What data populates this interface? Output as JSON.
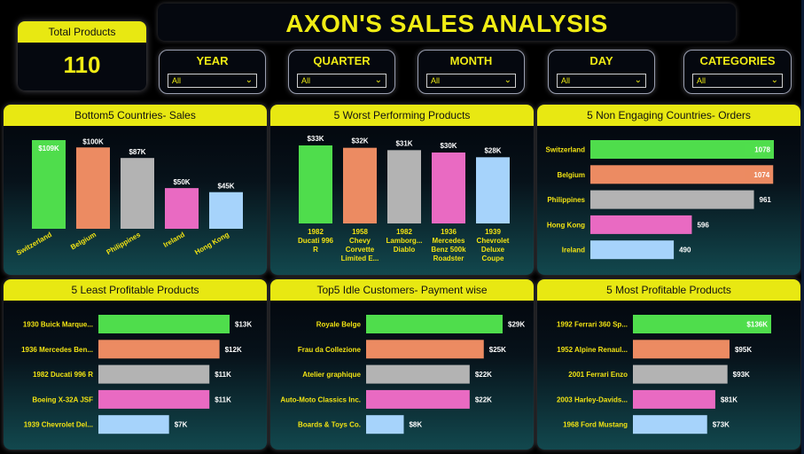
{
  "kpi": {
    "label": "Total Products",
    "value": "110"
  },
  "title": "AXON'S SALES ANALYSIS",
  "filters": [
    {
      "label": "YEAR",
      "value": "All"
    },
    {
      "label": "QUARTER",
      "value": "All"
    },
    {
      "label": "MONTH",
      "value": "All"
    },
    {
      "label": "DAY",
      "value": "All"
    },
    {
      "label": "CATEGORIES",
      "value": "All"
    }
  ],
  "palette": [
    "#4fdd4c",
    "#ec8b62",
    "#b3b3b3",
    "#e96ac2",
    "#a6d3fb"
  ],
  "chart_data": [
    {
      "type": "bar",
      "title": "Bottom5 Countries- Sales",
      "categories": [
        "Switzerland",
        "Belgium",
        "Philippines",
        "Ireland",
        "Hong Kong"
      ],
      "values": [
        109,
        100,
        87,
        50,
        45
      ],
      "labels": [
        "$109K",
        "$100K",
        "$87K",
        "$50K",
        "$45K"
      ],
      "ylim": [
        0,
        109
      ]
    },
    {
      "type": "bar",
      "title": "5 Worst Performing Products",
      "categories": [
        "1982 Ducati 996 R",
        "1958 Chevy Corvette Limited E...",
        "1982 Lamborg... Diablo",
        "1936 Mercedes Benz 500k Roadster",
        "1939 Chevrolet Deluxe Coupe"
      ],
      "category_lines": [
        [
          "1982",
          "Ducati 996",
          "R"
        ],
        [
          "1958",
          "Chevy",
          "Corvette",
          "Limited E..."
        ],
        [
          "1982",
          "Lamborg...",
          "Diablo"
        ],
        [
          "1936",
          "Mercedes",
          "Benz 500k",
          "Roadster"
        ],
        [
          "1939",
          "Chevrolet",
          "Deluxe",
          "Coupe"
        ]
      ],
      "values": [
        33,
        32,
        31,
        30,
        28
      ],
      "labels": [
        "$33K",
        "$32K",
        "$31K",
        "$30K",
        "$28K"
      ],
      "ylim": [
        0,
        33
      ]
    },
    {
      "type": "bar",
      "title": "5 Non Engaging Countries- Orders",
      "categories": [
        "Switzerland",
        "Belgium",
        "Philippines",
        "Hong Kong",
        "Ireland"
      ],
      "values": [
        1078,
        1074,
        961,
        596,
        490
      ],
      "labels": [
        "1078",
        "1074",
        "961",
        "596",
        "490"
      ],
      "xlim": [
        0,
        1078
      ]
    },
    {
      "type": "bar",
      "title": "5 Least Profitable Products",
      "categories": [
        "1930 Buick Marque...",
        "1936 Mercedes Ben...",
        "1982 Ducati 996 R",
        "Boeing X-32A JSF",
        "1939 Chevrolet Del..."
      ],
      "values": [
        13,
        12,
        11,
        11,
        7
      ],
      "labels": [
        "$13K",
        "$12K",
        "$11K",
        "$11K",
        "$7K"
      ],
      "xlim": [
        0,
        13
      ]
    },
    {
      "type": "bar",
      "title": "Top5 Idle Customers- Payment wise",
      "categories": [
        "Royale Belge",
        "Frau da Collezione",
        "Atelier graphique",
        "Auto-Moto Classics Inc.",
        "Boards & Toys Co."
      ],
      "values": [
        29,
        25,
        22,
        22,
        8
      ],
      "labels": [
        "$29K",
        "$25K",
        "$22K",
        "$22K",
        "$8K"
      ],
      "xlim": [
        0,
        29
      ]
    },
    {
      "type": "bar",
      "title": "5 Most Profitable Products",
      "categories": [
        "1992 Ferrari 360 Sp...",
        "1952 Alpine Renaul...",
        "2001 Ferrari Enzo",
        "2003 Harley-Davids...",
        "1968 Ford Mustang"
      ],
      "values": [
        136,
        95,
        93,
        81,
        73
      ],
      "labels": [
        "$136K",
        "$95K",
        "$93K",
        "$81K",
        "$73K"
      ],
      "xlim": [
        0,
        136
      ]
    }
  ]
}
